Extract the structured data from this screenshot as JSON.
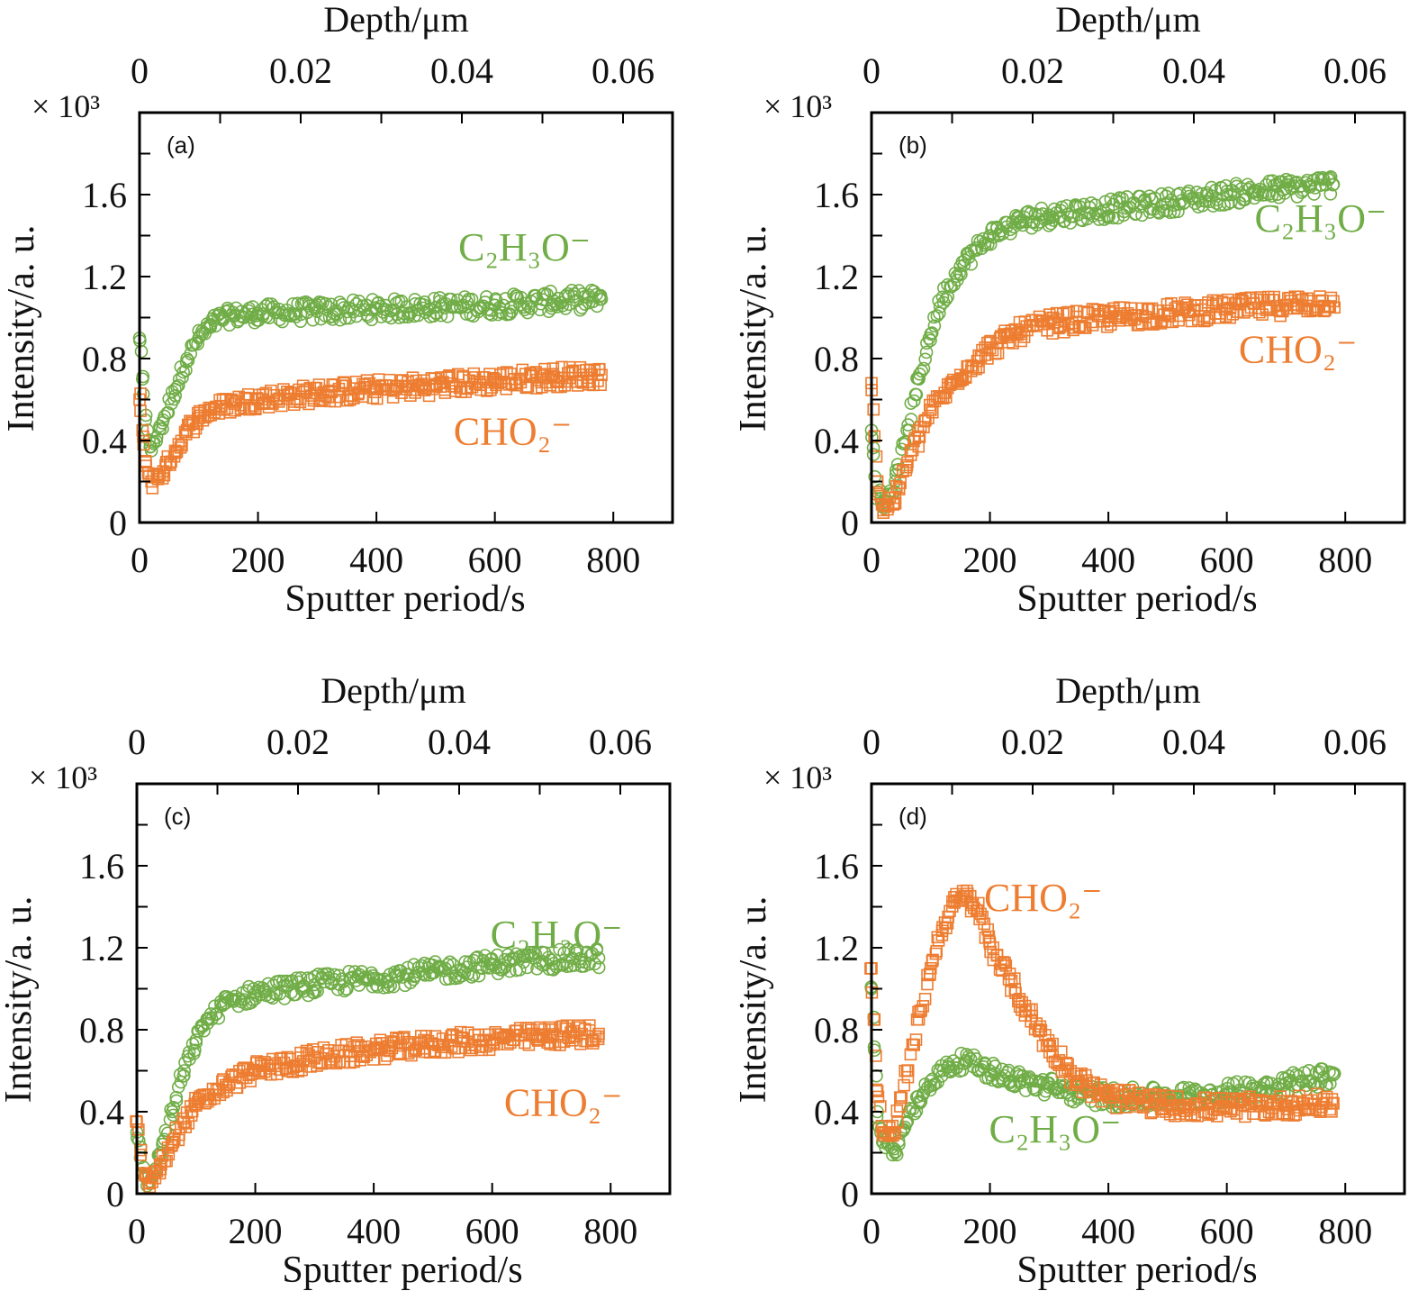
{
  "colors": {
    "C2H3O": "#70ad47",
    "CHO2": "#ed7d31"
  },
  "chart_data": [
    {
      "type": "scatter",
      "title": "(a)",
      "xlabel": "Sputter period/s",
      "ylabel": "Intensity/a. u.",
      "top_xlabel": "Depth/μm",
      "y_multiplier": "× 10³",
      "xlim": [
        0,
        900
      ],
      "ylim": [
        0,
        2.0
      ],
      "top_xlim": [
        0,
        0.06
      ],
      "xticks": [
        0,
        200,
        400,
        600,
        800
      ],
      "yticks": [
        0,
        0.4,
        0.8,
        1.2,
        1.6
      ],
      "top_xticks": [
        "0",
        "0.02",
        "0.04",
        "0.06"
      ],
      "series": [
        {
          "name": "C₂H₃O⁻",
          "key": "C2H3O",
          "marker": "circle",
          "x": [
            0,
            5,
            10,
            20,
            40,
            60,
            80,
            100,
            120,
            140,
            160,
            200,
            300,
            400,
            500,
            600,
            700,
            780
          ],
          "y": [
            0.9,
            0.7,
            0.5,
            0.35,
            0.5,
            0.65,
            0.8,
            0.9,
            0.96,
            1.0,
            1.01,
            1.02,
            1.03,
            1.04,
            1.05,
            1.06,
            1.08,
            1.09
          ]
        },
        {
          "name": "CHO₂⁻",
          "key": "CHO2",
          "marker": "square",
          "x": [
            0,
            5,
            10,
            20,
            40,
            60,
            80,
            100,
            120,
            160,
            200,
            300,
            400,
            500,
            600,
            700,
            780
          ],
          "y": [
            0.6,
            0.45,
            0.3,
            0.2,
            0.25,
            0.35,
            0.45,
            0.51,
            0.55,
            0.58,
            0.6,
            0.63,
            0.65,
            0.67,
            0.69,
            0.71,
            0.72
          ]
        }
      ]
    },
    {
      "type": "scatter",
      "title": "(b)",
      "xlabel": "Sputter period/s",
      "ylabel": "Intensity/a. u.",
      "top_xlabel": "Depth/μm",
      "y_multiplier": "× 10³",
      "xlim": [
        0,
        900
      ],
      "ylim": [
        0,
        2.0
      ],
      "top_xlim": [
        0,
        0.06
      ],
      "xticks": [
        0,
        200,
        400,
        600,
        800
      ],
      "yticks": [
        0,
        0.4,
        0.8,
        1.2,
        1.6
      ],
      "top_xticks": [
        "0",
        "0.02",
        "0.04",
        "0.06"
      ],
      "series": [
        {
          "name": "C₂H₃O⁻",
          "key": "C2H3O",
          "marker": "circle",
          "x": [
            0,
            10,
            20,
            40,
            60,
            80,
            100,
            120,
            150,
            200,
            250,
            300,
            400,
            500,
            600,
            700,
            780
          ],
          "y": [
            0.45,
            0.15,
            0.08,
            0.2,
            0.45,
            0.7,
            0.92,
            1.1,
            1.25,
            1.4,
            1.47,
            1.5,
            1.53,
            1.56,
            1.6,
            1.63,
            1.65
          ]
        },
        {
          "name": "CHO₂⁻",
          "key": "CHO2",
          "marker": "square",
          "x": [
            0,
            10,
            20,
            40,
            60,
            80,
            100,
            150,
            200,
            250,
            300,
            400,
            500,
            600,
            700,
            780
          ],
          "y": [
            0.68,
            0.2,
            0.06,
            0.12,
            0.28,
            0.42,
            0.55,
            0.72,
            0.85,
            0.93,
            0.97,
            1.0,
            1.02,
            1.04,
            1.06,
            1.08
          ]
        }
      ]
    },
    {
      "type": "scatter",
      "title": "(c)",
      "xlabel": "Sputter period/s",
      "ylabel": "Intensity/a. u.",
      "top_xlabel": "Depth/μm",
      "y_multiplier": "× 10³",
      "xlim": [
        0,
        900
      ],
      "ylim": [
        0,
        2.0
      ],
      "top_xlim": [
        0,
        0.06
      ],
      "xticks": [
        0,
        200,
        400,
        600,
        800
      ],
      "yticks": [
        0,
        0.4,
        0.8,
        1.2,
        1.6
      ],
      "top_xticks": [
        "0",
        "0.02",
        "0.04",
        "0.06"
      ],
      "series": [
        {
          "name": "C₂H₃O⁻",
          "key": "C2H3O",
          "marker": "circle",
          "x": [
            0,
            10,
            20,
            40,
            60,
            80,
            100,
            120,
            150,
            200,
            300,
            400,
            500,
            600,
            700,
            780
          ],
          "y": [
            0.3,
            0.1,
            0.05,
            0.2,
            0.4,
            0.6,
            0.75,
            0.85,
            0.93,
            0.98,
            1.02,
            1.05,
            1.08,
            1.12,
            1.14,
            1.15
          ]
        },
        {
          "name": "CHO₂⁻",
          "key": "CHO2",
          "marker": "square",
          "x": [
            0,
            10,
            20,
            40,
            60,
            80,
            100,
            150,
            200,
            300,
            400,
            500,
            600,
            700,
            780
          ],
          "y": [
            0.35,
            0.1,
            0.05,
            0.12,
            0.25,
            0.35,
            0.43,
            0.53,
            0.6,
            0.66,
            0.7,
            0.73,
            0.75,
            0.77,
            0.78
          ]
        }
      ]
    },
    {
      "type": "scatter",
      "title": "(d)",
      "xlabel": "Sputter period/s",
      "ylabel": "Intensity/a. u.",
      "top_xlabel": "Depth/μm",
      "y_multiplier": "× 10³",
      "xlim": [
        0,
        900
      ],
      "ylim": [
        0,
        2.0
      ],
      "top_xlim": [
        0,
        0.06
      ],
      "xticks": [
        0,
        200,
        400,
        600,
        800
      ],
      "yticks": [
        0,
        0.4,
        0.8,
        1.2,
        1.6
      ],
      "top_xticks": [
        "0",
        "0.02",
        "0.04",
        "0.06"
      ],
      "series": [
        {
          "name": "C₂H₃O⁻",
          "key": "C2H3O",
          "marker": "circle",
          "x": [
            0,
            5,
            10,
            20,
            40,
            60,
            80,
            100,
            130,
            160,
            200,
            250,
            300,
            350,
            400,
            500,
            600,
            700,
            780
          ],
          "y": [
            1.0,
            0.7,
            0.4,
            0.25,
            0.2,
            0.35,
            0.45,
            0.55,
            0.62,
            0.65,
            0.6,
            0.55,
            0.52,
            0.49,
            0.47,
            0.47,
            0.49,
            0.54,
            0.58
          ]
        },
        {
          "name": "CHO₂⁻",
          "key": "CHO2",
          "marker": "square",
          "x": [
            0,
            5,
            10,
            20,
            40,
            60,
            80,
            100,
            120,
            140,
            160,
            180,
            200,
            250,
            300,
            350,
            400,
            500,
            600,
            700,
            780
          ],
          "y": [
            1.1,
            0.85,
            0.5,
            0.3,
            0.3,
            0.6,
            0.85,
            1.1,
            1.3,
            1.42,
            1.45,
            1.38,
            1.22,
            0.95,
            0.72,
            0.55,
            0.47,
            0.43,
            0.42,
            0.43,
            0.44
          ]
        }
      ]
    }
  ]
}
